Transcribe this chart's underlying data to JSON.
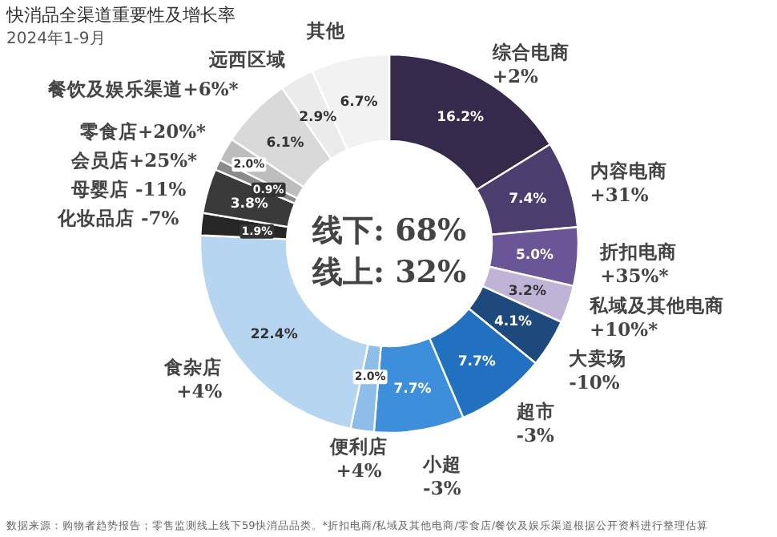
{
  "chart_data": {
    "type": "donut",
    "title": "快消品全渠道重要性及增长率",
    "subtitle": "2024年1-9月",
    "categories": [
      "综合电商 +2%",
      "内容电商 +31%",
      "折扣电商 +35%*",
      "私域及其他电商 +10%*",
      "大卖场 -10%",
      "超市 -3%",
      "小超 -3%",
      "便利店 +4%",
      "食杂店 +4%",
      "化妆品店 -7%",
      "母婴店 -11%",
      "会员店+25%*",
      "零食店+20%*",
      "餐饮及娱乐渠道+6%*",
      "远西区域",
      "其他"
    ],
    "values": [
      16.2,
      7.4,
      5.0,
      3.2,
      4.1,
      7.7,
      7.7,
      2.0,
      22.4,
      1.9,
      3.8,
      0.9,
      2.0,
      6.1,
      2.9,
      6.7
    ],
    "colors": [
      "#352a4c",
      "#4b3d6e",
      "#6a5596",
      "#bfb3d6",
      "#1e497c",
      "#2270c0",
      "#3d8fdc",
      "#8dbde9",
      "#b5d5f0",
      "#262626",
      "#3a3a3a",
      "#8a8a8a",
      "#bdbdbd",
      "#d9d9d9",
      "#ebebeb",
      "#f2f2f2"
    ],
    "value_labels": [
      "16.2%",
      "7.4%",
      "5.0%",
      "3.2%",
      "4.1%",
      "7.7%",
      "7.7%",
      "2.0%",
      "22.4%",
      "1.9%",
      "3.8%",
      "0.9%",
      "2.0%",
      "6.1%",
      "2.9%",
      "6.7%"
    ],
    "annotations": [
      "线下: 68%",
      "线上: 32%",
      "数据来源：购物者趋势报告；零售监测线上线下59快消品品类。*折扣电商/私域及其他电商/零食店/餐饮及娱乐渠道根据公开资料进行整理估算"
    ]
  }
}
